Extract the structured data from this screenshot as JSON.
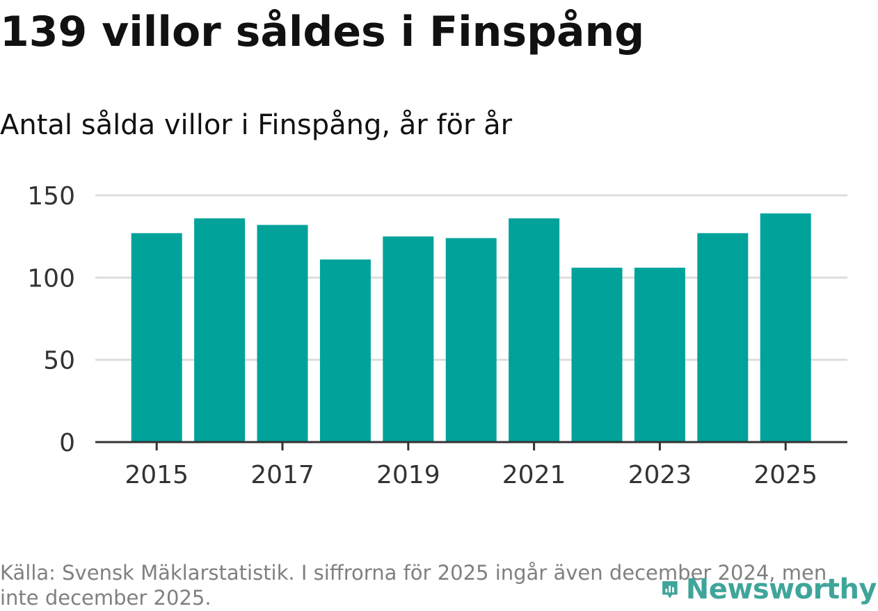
{
  "header": {
    "title": "139 villor såldes i Finspång",
    "subtitle": "Antal sålda villor i Finspång, år för år"
  },
  "chart_data": {
    "type": "bar",
    "categories": [
      "2015",
      "2016",
      "2017",
      "2018",
      "2019",
      "2020",
      "2021",
      "2022",
      "2023",
      "2024",
      "2025"
    ],
    "values": [
      127,
      136,
      132,
      111,
      125,
      124,
      136,
      106,
      106,
      127,
      139
    ],
    "xticks": [
      "2015",
      "2017",
      "2019",
      "2021",
      "2023",
      "2025"
    ],
    "yticks": [
      0,
      50,
      100,
      150
    ],
    "ylim": [
      0,
      150
    ],
    "xlabel": "",
    "ylabel": "",
    "grid": true,
    "bar_color": "#00a29a"
  },
  "footer": {
    "source": "Källa: Svensk Mäklarstatistik. I siffrorna för 2025 ingår även december 2024, men inte december 2025."
  },
  "logo": {
    "text": "Newsworthy",
    "icon": "newsworthy-logo-icon",
    "color": "#3fa59a"
  }
}
